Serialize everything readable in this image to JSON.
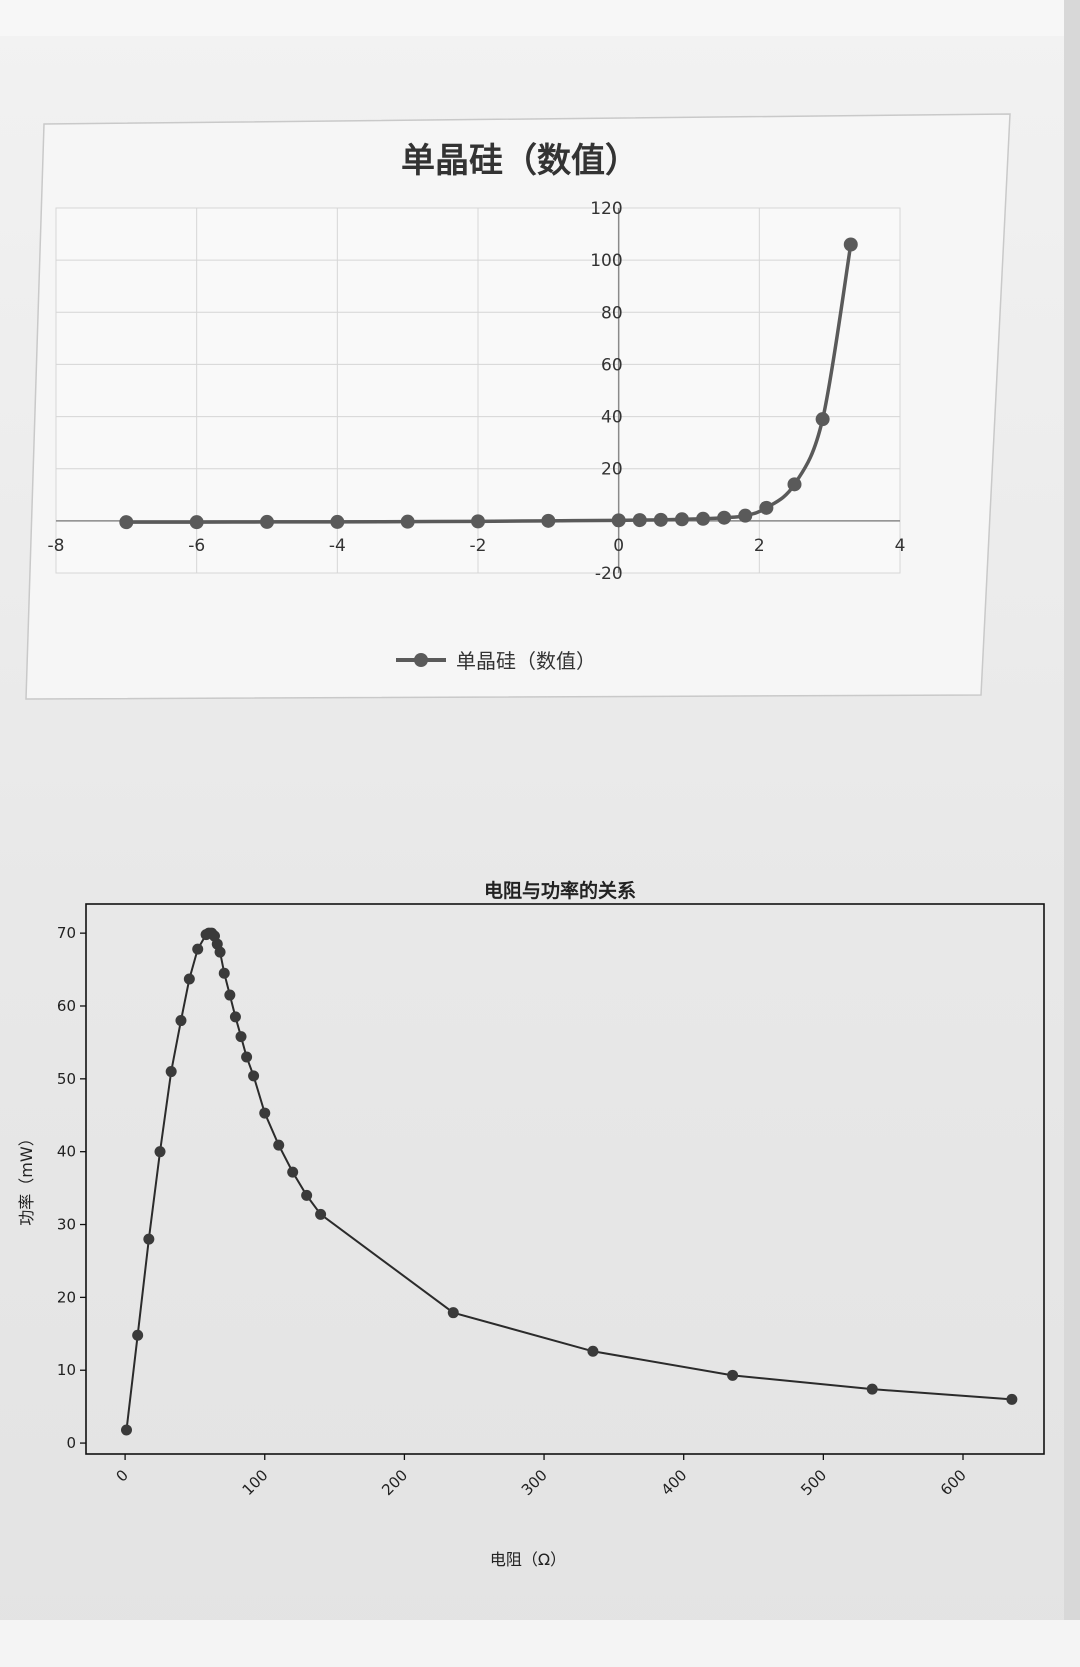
{
  "chart_data": [
    {
      "type": "line",
      "title": "单晶硅（数值）",
      "xlabel": "",
      "ylabel": "",
      "xlim": [
        -8,
        4
      ],
      "ylim": [
        -20,
        120
      ],
      "xticks": [
        -8,
        -6,
        -4,
        -2,
        0,
        2,
        4
      ],
      "yticks": [
        -20,
        0,
        20,
        40,
        60,
        80,
        100,
        120
      ],
      "xtick_labels": [
        "-8",
        "-6",
        "-4",
        "-2",
        "0",
        "2",
        "4"
      ],
      "ytick_labels": [
        "-20",
        "0",
        "20",
        "40",
        "60",
        "80",
        "100",
        "120"
      ],
      "grid": true,
      "legend": "bottom",
      "series": [
        {
          "name": "单晶硅（数值）",
          "color": "#5a5a5a",
          "smooth": true,
          "x": [
            -7,
            -6,
            -5,
            -4,
            -3,
            -2,
            -1,
            0,
            0.3,
            0.6,
            0.9,
            1.2,
            1.5,
            1.8,
            2.1,
            2.5,
            2.9,
            3.3
          ],
          "y": [
            -0.5,
            -0.5,
            -0.4,
            -0.4,
            -0.3,
            -0.2,
            0,
            0.2,
            0.3,
            0.4,
            0.6,
            0.8,
            1.2,
            2,
            5,
            14,
            39,
            106
          ]
        }
      ]
    },
    {
      "type": "line",
      "title": "电阻与功率的关系",
      "xlabel": "电阻（Ω）",
      "ylabel": "功率（mW）",
      "xlim": [
        -28,
        658
      ],
      "ylim": [
        -1.5,
        74
      ],
      "xticks": [
        0,
        100,
        200,
        300,
        400,
        500,
        600
      ],
      "yticks": [
        0,
        10,
        20,
        30,
        40,
        50,
        60,
        70
      ],
      "xtick_labels": [
        "0",
        "100",
        "200",
        "300",
        "400",
        "500",
        "600"
      ],
      "ytick_labels": [
        "0",
        "10",
        "20",
        "30",
        "40",
        "50",
        "60",
        "70"
      ],
      "grid": false,
      "series": [
        {
          "color": "#2b2b2b",
          "x": [
            1,
            9,
            17,
            25,
            33,
            40,
            46,
            52,
            58,
            60,
            62,
            64,
            66,
            68,
            71,
            75,
            79,
            83,
            87,
            92,
            100,
            110,
            120,
            130,
            140,
            235,
            335,
            435,
            535,
            635
          ],
          "y": [
            1.8,
            14.8,
            28,
            40,
            51,
            58,
            63.7,
            67.8,
            69.8,
            70,
            70,
            69.6,
            68.5,
            67.4,
            64.5,
            61.5,
            58.5,
            55.8,
            53,
            50.4,
            45.3,
            40.9,
            37.2,
            34,
            31.4,
            17.9,
            12.6,
            9.3,
            7.4,
            6
          ]
        }
      ]
    }
  ]
}
